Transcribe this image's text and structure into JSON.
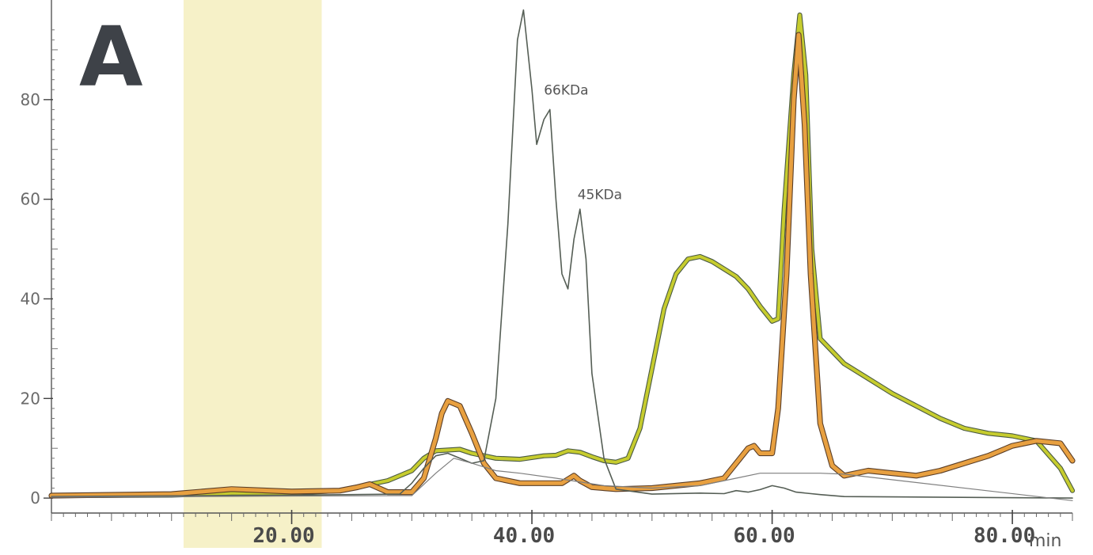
{
  "panel_label": "A",
  "annotations": [
    {
      "text": "66KDa",
      "x": 41.0,
      "y": 81
    },
    {
      "text": "45KDa",
      "x": 43.8,
      "y": 60
    }
  ],
  "chart_data": {
    "type": "line",
    "xlabel": "min",
    "ylabel": "",
    "xlim": [
      0,
      85
    ],
    "ylim": [
      -3,
      100
    ],
    "x_ticks": [
      20,
      40,
      60,
      80
    ],
    "x_tick_labels": [
      "20.00",
      "40.00",
      "60.00",
      "80.00"
    ],
    "y_ticks": [
      0,
      20,
      40,
      60,
      80
    ],
    "y_tick_labels": [
      "0",
      "20",
      "40",
      "60",
      "80"
    ],
    "highlight_band": {
      "from": 11.0,
      "to": 22.5,
      "color": "#f6f1c8"
    },
    "grid": false,
    "legend": "none",
    "series": [
      {
        "color": "#c6cc2e",
        "outline": "#4a5a44",
        "width": 4,
        "points": [
          [
            0,
            0.5
          ],
          [
            10,
            0.6
          ],
          [
            15,
            1.0
          ],
          [
            20,
            1.0
          ],
          [
            24,
            1.5
          ],
          [
            26,
            2.5
          ],
          [
            28,
            3.5
          ],
          [
            30,
            5.5
          ],
          [
            31,
            8
          ],
          [
            32,
            9.5
          ],
          [
            34,
            9.8
          ],
          [
            35,
            9
          ],
          [
            37,
            8
          ],
          [
            39,
            7.8
          ],
          [
            41,
            8.5
          ],
          [
            42,
            8.6
          ],
          [
            43,
            9.5
          ],
          [
            44,
            9.2
          ],
          [
            45,
            8.3
          ],
          [
            46,
            7.5
          ],
          [
            47,
            7.2
          ],
          [
            48,
            8
          ],
          [
            49,
            14
          ],
          [
            50,
            26
          ],
          [
            51,
            38
          ],
          [
            52,
            45
          ],
          [
            53,
            48
          ],
          [
            54,
            48.5
          ],
          [
            55,
            47.5
          ],
          [
            56,
            46
          ],
          [
            57,
            44.5
          ],
          [
            58,
            42
          ],
          [
            59,
            38.5
          ],
          [
            60,
            35.5
          ],
          [
            60.5,
            36
          ],
          [
            61,
            58
          ],
          [
            61.8,
            85
          ],
          [
            62.3,
            97
          ],
          [
            62.8,
            85
          ],
          [
            63.3,
            50
          ],
          [
            64,
            32
          ],
          [
            66,
            27
          ],
          [
            68,
            24
          ],
          [
            70,
            21
          ],
          [
            72,
            18.5
          ],
          [
            74,
            16
          ],
          [
            76,
            14
          ],
          [
            78,
            13
          ],
          [
            80,
            12.5
          ],
          [
            82,
            11.5
          ],
          [
            84,
            6
          ],
          [
            85,
            1.5
          ]
        ]
      },
      {
        "color": "#e8a040",
        "outline": "#5a3e28",
        "width": 5,
        "points": [
          [
            0,
            0.5
          ],
          [
            10,
            0.8
          ],
          [
            15,
            1.8
          ],
          [
            20,
            1.3
          ],
          [
            24,
            1.5
          ],
          [
            25.5,
            2.2
          ],
          [
            26.5,
            2.8
          ],
          [
            28,
            1.2
          ],
          [
            30,
            1.2
          ],
          [
            31,
            4
          ],
          [
            32,
            12
          ],
          [
            32.5,
            17
          ],
          [
            33,
            19.5
          ],
          [
            34,
            18.5
          ],
          [
            35,
            13
          ],
          [
            36,
            7
          ],
          [
            37,
            4
          ],
          [
            39,
            3
          ],
          [
            41,
            3
          ],
          [
            42.5,
            3
          ],
          [
            43.5,
            4.5
          ],
          [
            44,
            3.5
          ],
          [
            45,
            2.2
          ],
          [
            47,
            1.8
          ],
          [
            50,
            2
          ],
          [
            54,
            3
          ],
          [
            56,
            4
          ],
          [
            57,
            7
          ],
          [
            58,
            10
          ],
          [
            58.5,
            10.5
          ],
          [
            59,
            9
          ],
          [
            60,
            9
          ],
          [
            60.5,
            18
          ],
          [
            61.2,
            45
          ],
          [
            61.8,
            80
          ],
          [
            62.2,
            93
          ],
          [
            62.7,
            75
          ],
          [
            63.2,
            45
          ],
          [
            64,
            15
          ],
          [
            65,
            6.5
          ],
          [
            66,
            4.5
          ],
          [
            68,
            5.5
          ],
          [
            70,
            5
          ],
          [
            72,
            4.5
          ],
          [
            74,
            5.5
          ],
          [
            76,
            7
          ],
          [
            78,
            8.5
          ],
          [
            80,
            10.5
          ],
          [
            82,
            11.5
          ],
          [
            84,
            11
          ],
          [
            85,
            7.5
          ]
        ]
      },
      {
        "color": "#555e55",
        "outline": "",
        "width": 1.6,
        "points": [
          [
            0,
            0.3
          ],
          [
            20,
            0.6
          ],
          [
            25,
            0.7
          ],
          [
            29,
            0.8
          ],
          [
            30,
            3
          ],
          [
            31,
            6
          ],
          [
            32,
            8.5
          ],
          [
            33,
            9
          ],
          [
            34,
            8
          ],
          [
            35,
            7
          ],
          [
            36,
            7.5
          ],
          [
            37,
            20
          ],
          [
            38,
            55
          ],
          [
            38.8,
            92
          ],
          [
            39.3,
            98
          ],
          [
            40,
            82
          ],
          [
            40.4,
            71
          ],
          [
            41,
            76
          ],
          [
            41.5,
            78
          ],
          [
            42,
            60
          ],
          [
            42.5,
            45
          ],
          [
            43,
            42
          ],
          [
            43.5,
            52
          ],
          [
            44,
            58
          ],
          [
            44.5,
            48
          ],
          [
            45,
            25
          ],
          [
            46,
            8
          ],
          [
            47,
            1.8
          ],
          [
            50,
            0.8
          ],
          [
            54,
            1
          ],
          [
            56,
            0.9
          ],
          [
            57,
            1.5
          ],
          [
            58,
            1.2
          ],
          [
            59,
            1.7
          ],
          [
            60,
            2.5
          ],
          [
            61,
            2
          ],
          [
            62,
            1.2
          ],
          [
            64,
            0.7
          ],
          [
            66,
            0.3
          ],
          [
            85,
            0
          ]
        ]
      },
      {
        "color": "#7f7f7f",
        "outline": "",
        "width": 1.2,
        "points": [
          [
            0,
            0.2
          ],
          [
            30,
            0.5
          ],
          [
            32,
            5
          ],
          [
            33.5,
            8
          ],
          [
            35,
            7
          ],
          [
            37,
            5.5
          ],
          [
            39,
            5
          ],
          [
            42,
            4
          ],
          [
            46,
            2.5
          ],
          [
            50,
            2
          ],
          [
            54,
            2.5
          ],
          [
            57,
            4
          ],
          [
            59,
            5
          ],
          [
            61,
            5
          ],
          [
            64,
            5
          ],
          [
            66,
            4.8
          ],
          [
            85,
            -0.5
          ]
        ]
      }
    ]
  }
}
